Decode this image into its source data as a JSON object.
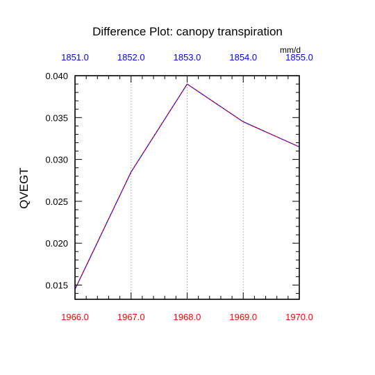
{
  "chart_data": {
    "type": "line",
    "title": "Difference Plot: canopy transpiration",
    "units": "mm/d",
    "ylabel": "QVEGT",
    "x_bottom": {
      "ticks": [
        "1966.0",
        "1967.0",
        "1968.0",
        "1969.0",
        "1970.0"
      ],
      "color": "#ff0000",
      "range": [
        1966,
        1970
      ]
    },
    "x_top": {
      "ticks": [
        "1851.0",
        "1852.0",
        "1853.0",
        "1854.0",
        "1855.0"
      ],
      "color": "#0000ff",
      "range": [
        1851,
        1855
      ]
    },
    "ylim": [
      0.0133,
      0.04
    ],
    "y_ticks": [
      "0.015",
      "0.020",
      "0.025",
      "0.030",
      "0.035",
      "0.040"
    ],
    "series": [
      {
        "x": [
          1966,
          1967,
          1968,
          1969,
          1970
        ],
        "values": [
          0.0145,
          0.0285,
          0.039,
          0.0345,
          0.0315
        ],
        "color": "#0000ff",
        "dash_color": "#ff0000"
      }
    ],
    "grid": "vertical dashed gray"
  }
}
